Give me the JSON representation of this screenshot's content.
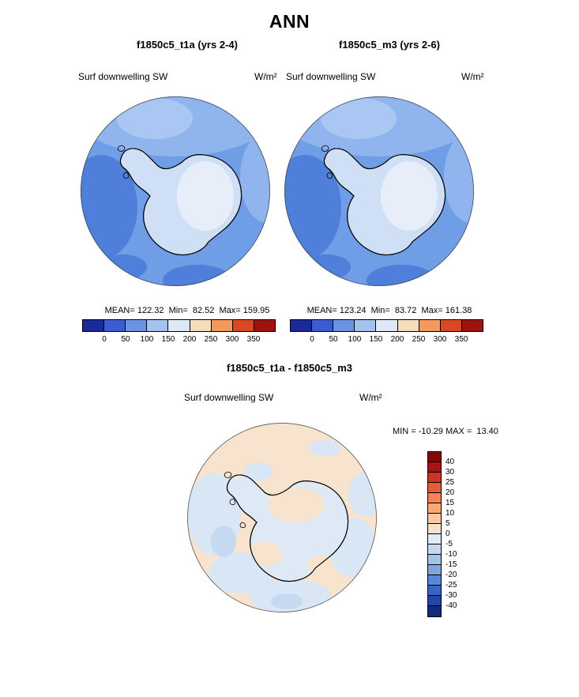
{
  "title": "ANN",
  "panels": {
    "left": {
      "title": "f1850c5_t1a (yrs 2-4)",
      "field": "Surf downwelling SW",
      "units": "W/m²",
      "stats": "MEAN= 122.32  Min=  82.52  Max= 159.95"
    },
    "right": {
      "title": "f1850c5_m3 (yrs 2-6)",
      "field": "Surf downwelling SW",
      "units": "W/m²",
      "stats": "MEAN= 123.24  Min=  83.72  Max= 161.38"
    },
    "diff": {
      "title": "f1850c5_t1a - f1850c5_m3",
      "field": "Surf downwelling SW",
      "units": "W/m²",
      "minmax": "MIN = -10.29 MAX =  13.40"
    }
  },
  "colorbars": {
    "absolute": {
      "colors": [
        "#1a2a96",
        "#3a5cd0",
        "#6a93e2",
        "#a2c2f0",
        "#dde9f7",
        "#f6ddbd",
        "#f29a5c",
        "#da4726",
        "#9c130f"
      ],
      "ticks": [
        "0",
        "50",
        "100",
        "150",
        "200",
        "250",
        "300",
        "350"
      ]
    },
    "difference": {
      "colors": [
        "#7f0a0a",
        "#a81414",
        "#cc3322",
        "#e55c38",
        "#f28453",
        "#f6a876",
        "#f8c9a2",
        "#f7e3cd",
        "#e2ecf7",
        "#c4d9f0",
        "#a2c3ea",
        "#7da7df",
        "#5a87d3",
        "#3a64c3",
        "#2446a6",
        "#14287c"
      ],
      "labels": [
        "40",
        "30",
        "25",
        "20",
        "15",
        "10",
        "5",
        "0",
        "-5",
        "-10",
        "-15",
        "-20",
        "-25",
        "-30",
        "-40"
      ]
    }
  },
  "map_palette": {
    "sw": {
      "ocean_dark": "#4f7fda",
      "ocean_mid": "#6f9de6",
      "ocean_light": "#8fb4ee",
      "ocean_pale": "#a9c7f2",
      "land": "#cfe0f6",
      "land_light": "#e7eefa"
    },
    "diff": {
      "base": "#f7e3ce",
      "blue": "#d9e6f5",
      "blue2": "#c5d9f0",
      "land": "#dfe9f6"
    }
  },
  "chart_data": {
    "type": "heatmap",
    "subtype": "polar_stereographic_contour_map_set",
    "season": "ANN",
    "variable": "Surf downwelling SW",
    "units": "W/m²",
    "panels": [
      {
        "id": "case1",
        "title": "f1850c5_t1a (yrs 2-4)",
        "mean": 122.32,
        "min": 82.52,
        "max": 159.95,
        "colorbar_ticks": [
          0,
          50,
          100,
          150,
          200,
          250,
          300,
          350
        ],
        "colorbar_position": "below"
      },
      {
        "id": "case2",
        "title": "f1850c5_m3 (yrs 2-6)",
        "mean": 123.24,
        "min": 83.72,
        "max": 161.38,
        "colorbar_ticks": [
          0,
          50,
          100,
          150,
          200,
          250,
          300,
          350
        ],
        "colorbar_position": "below"
      },
      {
        "id": "difference",
        "title": "f1850c5_t1a - f1850c5_m3",
        "min": -10.29,
        "max": 13.4,
        "colorbar_ticks": [
          40,
          30,
          25,
          20,
          15,
          10,
          5,
          0,
          -5,
          -10,
          -15,
          -20,
          -25,
          -30,
          -40
        ],
        "colorbar_position": "right"
      }
    ]
  }
}
